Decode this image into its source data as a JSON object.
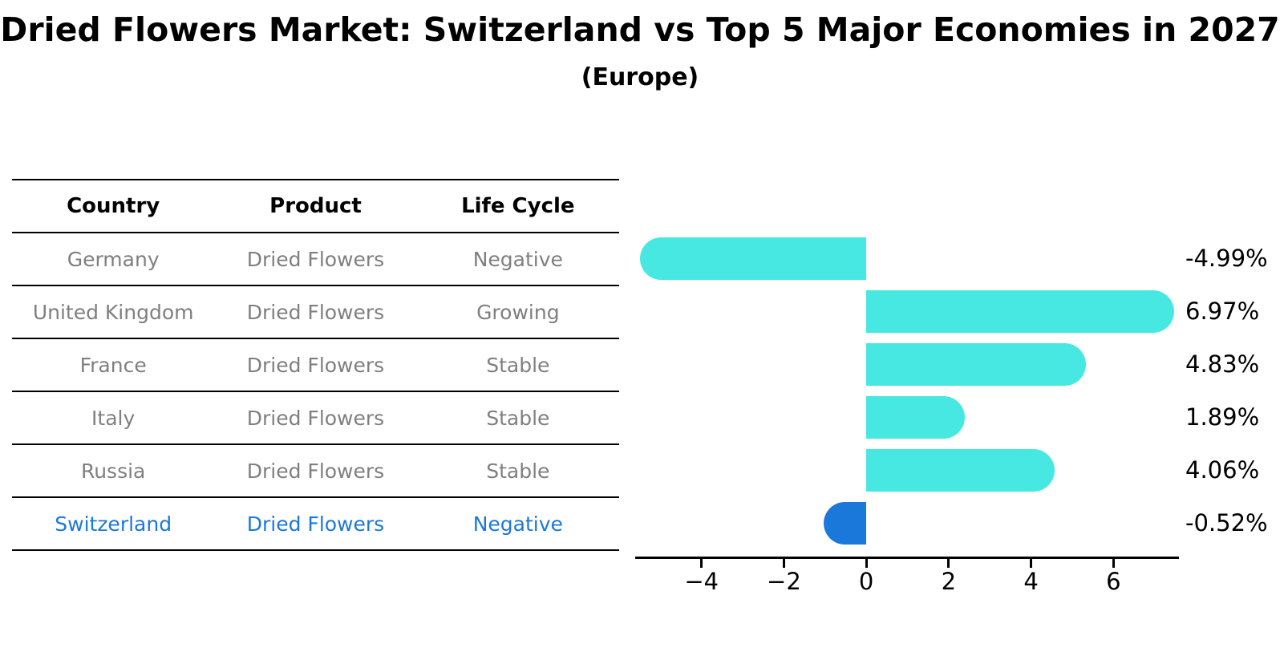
{
  "title": "Dried Flowers Market: Switzerland vs Top 5 Major Economies in 2027",
  "subtitle": "(Europe)",
  "table": {
    "headers": [
      "Country",
      "Product",
      "Life Cycle"
    ],
    "rows": [
      {
        "country": "Germany",
        "product": "Dried Flowers",
        "life_cycle": "Negative",
        "highlight": false
      },
      {
        "country": "United Kingdom",
        "product": "Dried Flowers",
        "life_cycle": "Growing",
        "highlight": false
      },
      {
        "country": "France",
        "product": "Dried Flowers",
        "life_cycle": "Stable",
        "highlight": false
      },
      {
        "country": "Italy",
        "product": "Dried Flowers",
        "life_cycle": "Stable",
        "highlight": false
      },
      {
        "country": "Russia",
        "product": "Dried Flowers",
        "life_cycle": "Stable",
        "highlight": false
      },
      {
        "country": "Switzerland",
        "product": "Dried Flowers",
        "life_cycle": "Negative",
        "highlight": true
      }
    ]
  },
  "chart_data": {
    "type": "bar",
    "orientation": "horizontal",
    "title": "Dried Flowers Market: Switzerland vs Top 5 Major Economies in 2027 (Europe)",
    "categories": [
      "Germany",
      "United Kingdom",
      "France",
      "Italy",
      "Russia",
      "Switzerland"
    ],
    "values": [
      -4.99,
      6.97,
      4.83,
      1.89,
      4.06,
      -0.52
    ],
    "value_labels": [
      "-4.99%",
      "6.97%",
      "4.83%",
      "1.89%",
      "4.06%",
      "-0.52%"
    ],
    "unit": "percent CAGR",
    "xlim": [
      -5.61,
      7.59
    ],
    "xticks": [
      -4,
      -2,
      0,
      2,
      4,
      6
    ],
    "xtick_labels": [
      "−4",
      "−2",
      "0",
      "2",
      "4",
      "6"
    ],
    "grid": false,
    "legend": false,
    "bar_color": "#46e8e1",
    "highlight_color": "#1b78db",
    "highlight_index": 5
  },
  "colors": {
    "background": "#ffffff",
    "bar_cyan": "#46e8e1",
    "highlight_blue": "#1b78db",
    "table_text_gray": "#7f7f7f",
    "text_black": "#000000"
  }
}
